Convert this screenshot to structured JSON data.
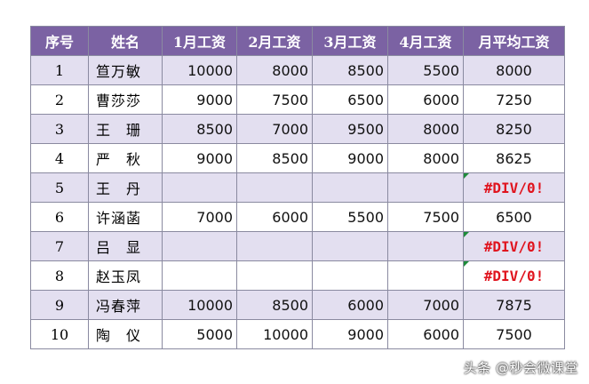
{
  "table": {
    "headers": [
      "序号",
      "姓名",
      "1月工资",
      "2月工资",
      "3月工资",
      "4月工资",
      "月平均工资"
    ],
    "rows": [
      {
        "idx": "1",
        "name": "笪万敏",
        "m1": "10000",
        "m2": "8000",
        "m3": "8500",
        "m4": "5500",
        "avg": "8000",
        "error": false
      },
      {
        "idx": "2",
        "name": "曹莎莎",
        "m1": "9000",
        "m2": "7500",
        "m3": "6500",
        "m4": "6000",
        "avg": "7250",
        "error": false
      },
      {
        "idx": "3",
        "name": "王　珊",
        "m1": "8500",
        "m2": "7000",
        "m3": "9500",
        "m4": "8000",
        "avg": "8250",
        "error": false
      },
      {
        "idx": "4",
        "name": "严　秋",
        "m1": "9000",
        "m2": "8500",
        "m3": "9000",
        "m4": "8000",
        "avg": "8625",
        "error": false
      },
      {
        "idx": "5",
        "name": "王　丹",
        "m1": "",
        "m2": "",
        "m3": "",
        "m4": "",
        "avg": "#DIV/0!",
        "error": true
      },
      {
        "idx": "6",
        "name": "许涵菡",
        "m1": "7000",
        "m2": "6000",
        "m3": "5500",
        "m4": "7500",
        "avg": "6500",
        "error": false
      },
      {
        "idx": "7",
        "name": "吕　显",
        "m1": "",
        "m2": "",
        "m3": "",
        "m4": "",
        "avg": "#DIV/0!",
        "error": true
      },
      {
        "idx": "8",
        "name": "赵玉凤",
        "m1": "",
        "m2": "",
        "m3": "",
        "m4": "",
        "avg": "#DIV/0!",
        "error": true
      },
      {
        "idx": "9",
        "name": "冯春萍",
        "m1": "10000",
        "m2": "8500",
        "m3": "6000",
        "m4": "7000",
        "avg": "7875",
        "error": false
      },
      {
        "idx": "10",
        "name": "陶　仪",
        "m1": "5000",
        "m2": "10000",
        "m3": "9000",
        "m4": "6000",
        "avg": "7500",
        "error": false
      }
    ]
  },
  "colors": {
    "header_bg": "#7b62a3",
    "band_bg": "#e3dff0",
    "error_text": "#e0141e",
    "error_flag": "#1e8c3a"
  },
  "watermark": "头条 @秒会微课堂"
}
